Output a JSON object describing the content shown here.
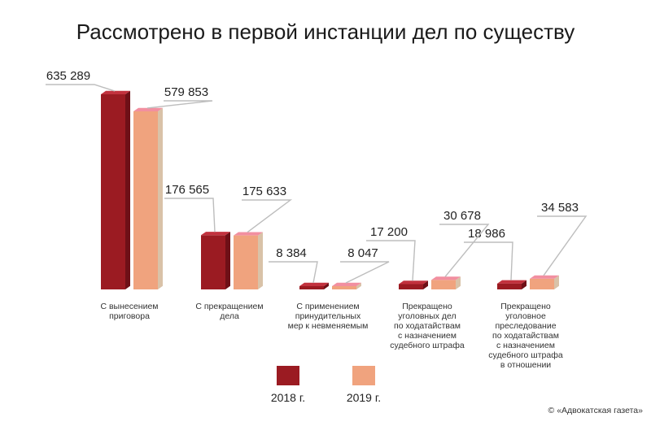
{
  "title": "Рассмотрено в первой инстанции дел по существу",
  "source": "© «Адвокатская газета»",
  "colors": {
    "series2018_front": "#9b1b22",
    "series2018_side": "#6e1017",
    "series2019_front": "#f0a37e",
    "series2019_side": "#d9c2a8",
    "accent_pink": "#f28fa0"
  },
  "chart_data": {
    "type": "bar",
    "title": "Рассмотрено в первой инстанции дел по существу",
    "categories": [
      [
        "С вынесением",
        "приговора"
      ],
      [
        "С прекращением",
        "дела"
      ],
      [
        "С применением",
        "принудительных",
        "мер к невменяемым"
      ],
      [
        "Прекращено",
        "уголовных дел",
        "по ходатайствам",
        "с назначением",
        "судебного штрафа"
      ],
      [
        "Прекращено",
        "уголовное",
        "преследование",
        "по ходатайствам",
        "с назначением",
        "судебного штрафа",
        "в отношении"
      ]
    ],
    "series": [
      {
        "name": "2018 г.",
        "values": [
          635289,
          176565,
          8384,
          17200,
          18986
        ],
        "labels": [
          "635 289",
          "176 565",
          "8 384",
          "17 200",
          "18 986"
        ]
      },
      {
        "name": "2019 г.",
        "values": [
          579853,
          175633,
          8047,
          30678,
          34583
        ],
        "labels": [
          "579 853",
          "175 633",
          "8 047",
          "30 678",
          "34 583"
        ]
      }
    ],
    "legend": "bottom-center"
  }
}
